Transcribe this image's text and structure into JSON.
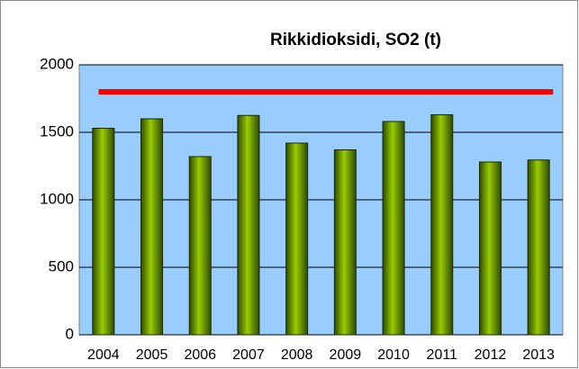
{
  "chart_data": {
    "type": "bar",
    "title": "Rikkidioksidi, SO2 (t)",
    "categories": [
      "2004",
      "2005",
      "2006",
      "2007",
      "2008",
      "2009",
      "2010",
      "2011",
      "2012",
      "2013"
    ],
    "values": [
      1530,
      1600,
      1320,
      1625,
      1420,
      1370,
      1580,
      1630,
      1280,
      1295
    ],
    "color": "#99cc00",
    "reference_line": {
      "value": 1800,
      "color": "#ff0000"
    },
    "ylim": [
      0,
      2000
    ],
    "yticks": [
      0,
      500,
      1000,
      1500,
      2000
    ],
    "grid": true,
    "plot_background": "#99ccff"
  }
}
